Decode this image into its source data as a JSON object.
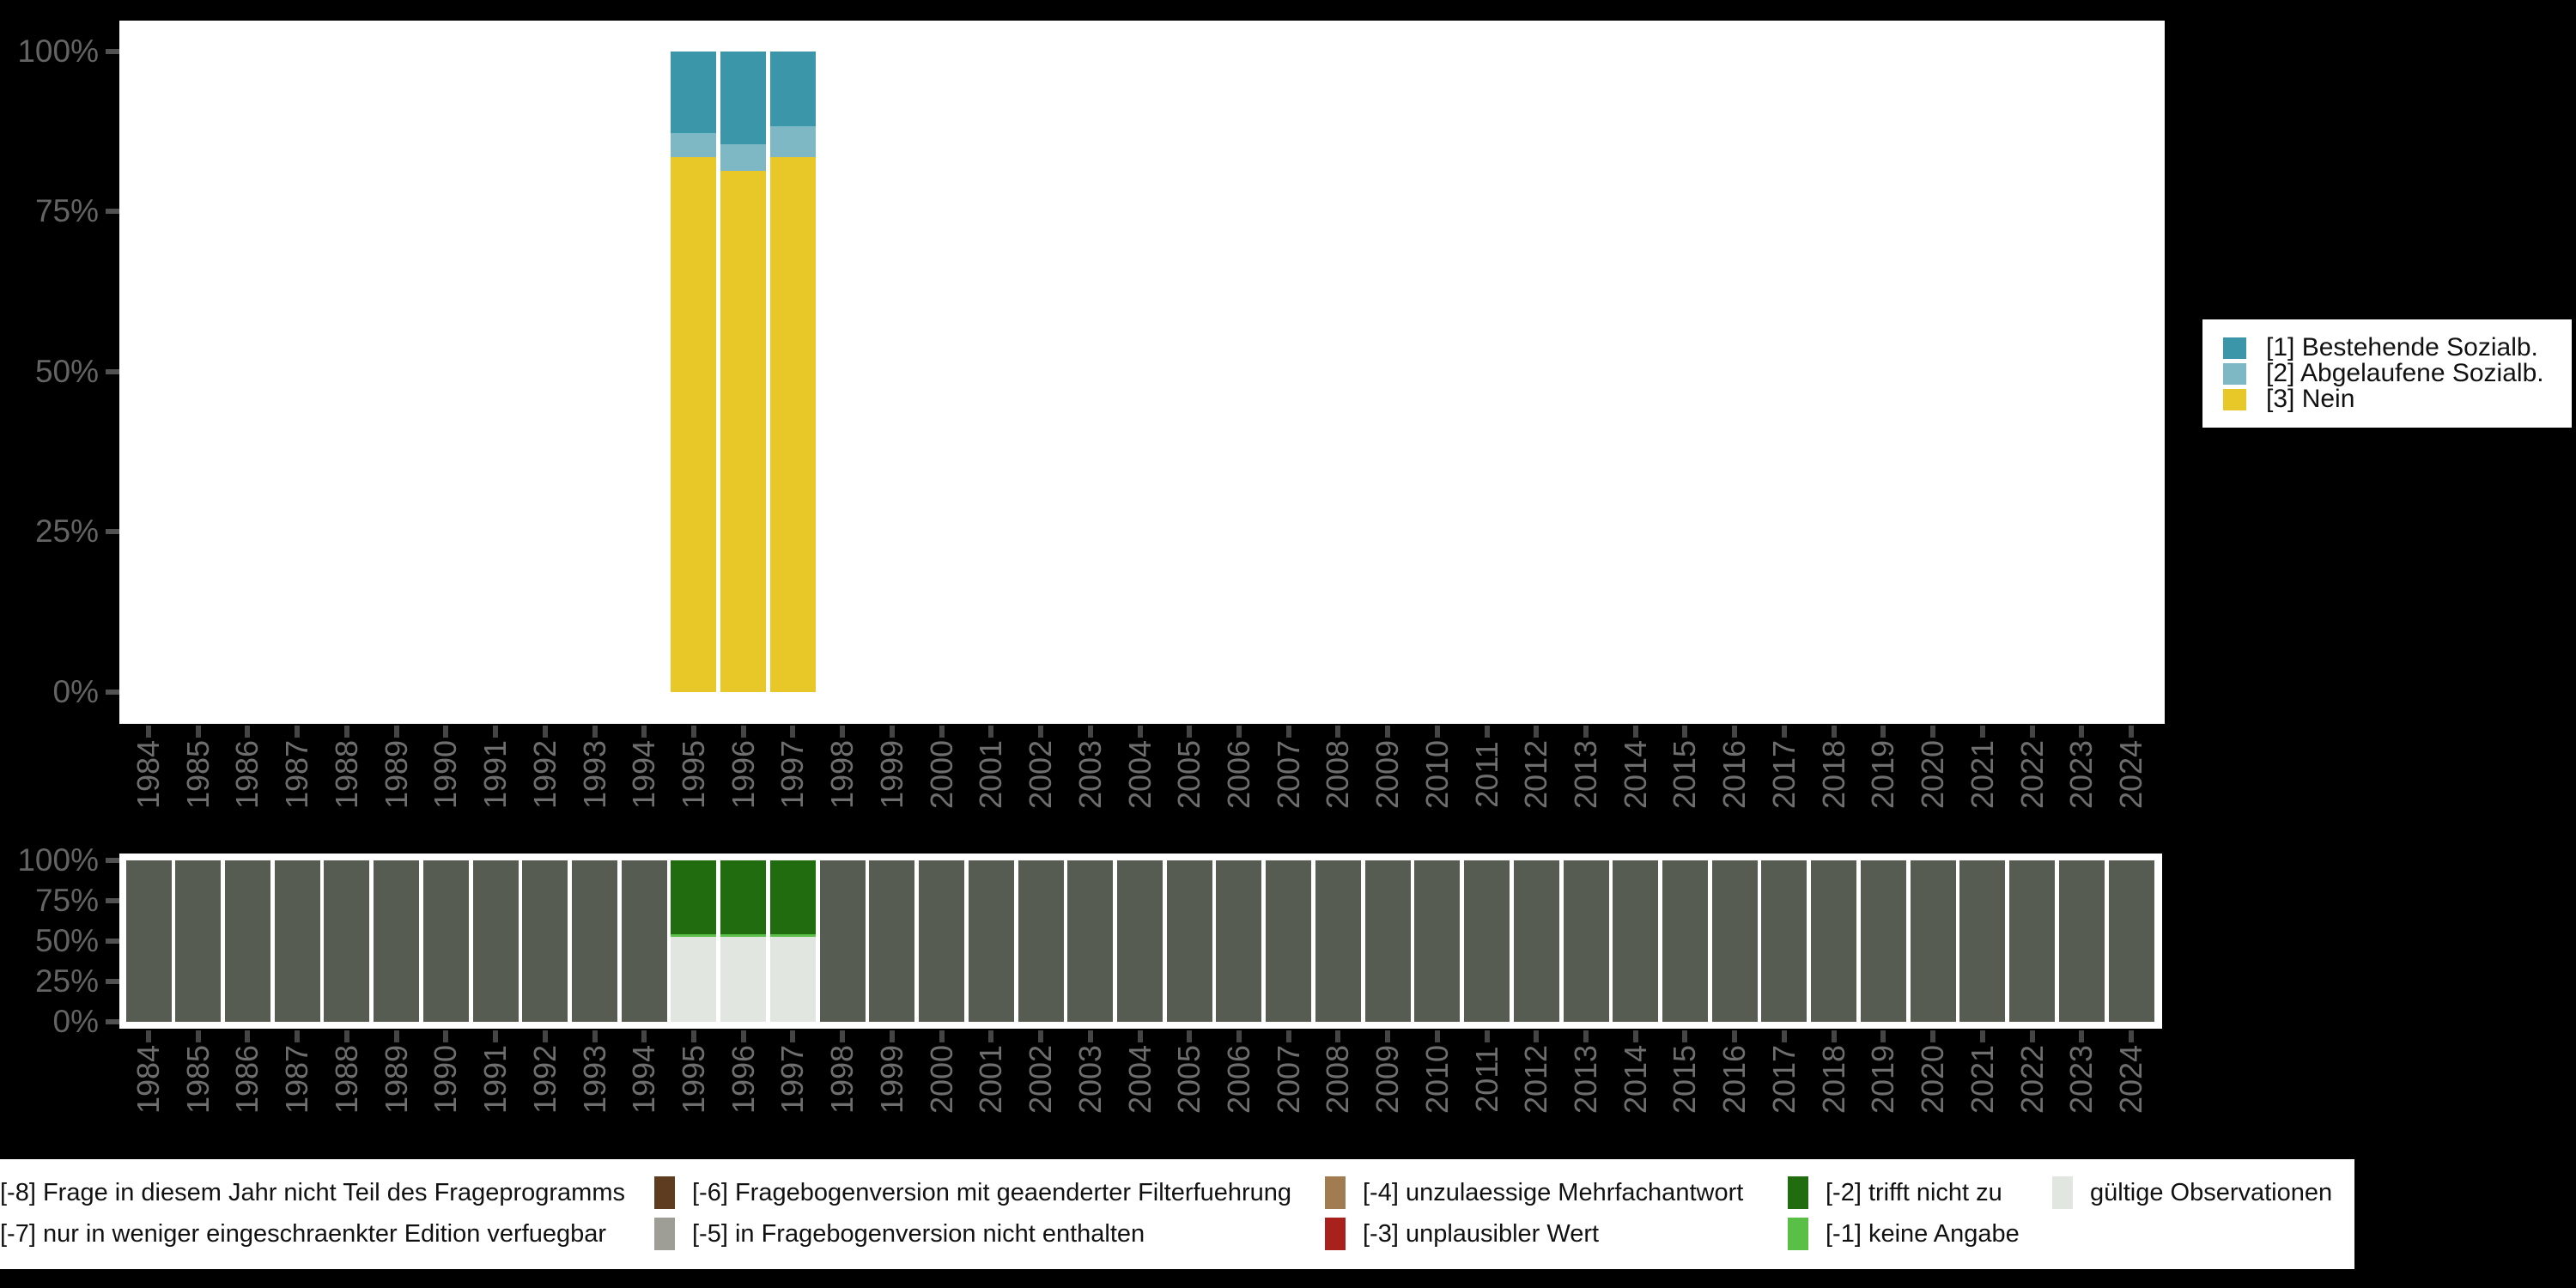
{
  "figure": {
    "background_color": "#000000",
    "panel_color": "#ffffff",
    "axis_text_color": "#6e6e6e"
  },
  "years": [
    "1984",
    "1985",
    "1986",
    "1987",
    "1988",
    "1989",
    "1990",
    "1991",
    "1992",
    "1993",
    "1994",
    "1995",
    "1996",
    "1997",
    "1998",
    "1999",
    "2000",
    "2001",
    "2002",
    "2003",
    "2004",
    "2005",
    "2006",
    "2007",
    "2008",
    "2009",
    "2010",
    "2011",
    "2012",
    "2013",
    "2014",
    "2015",
    "2016",
    "2017",
    "2018",
    "2019",
    "2020",
    "2021",
    "2022",
    "2023",
    "2024"
  ],
  "y_tick_labels": [
    "100%",
    "75%",
    "50%",
    "25%",
    "0%"
  ],
  "chart_data": [
    {
      "id": "percent-chart",
      "type": "bar",
      "stacked": true,
      "unit": "percent",
      "title": "",
      "xlabel": "",
      "ylabel": "",
      "ylim": [
        0,
        100
      ],
      "ytick_labels": [
        "0%",
        "25%",
        "50%",
        "75%",
        "100%"
      ],
      "grid": false,
      "legend_position": "right",
      "categories": [
        "1984",
        "1985",
        "1986",
        "1987",
        "1988",
        "1989",
        "1990",
        "1991",
        "1992",
        "1993",
        "1994",
        "1995",
        "1996",
        "1997",
        "1998",
        "1999",
        "2000",
        "2001",
        "2002",
        "2003",
        "2004",
        "2005",
        "2006",
        "2007",
        "2008",
        "2009",
        "2010",
        "2011",
        "2012",
        "2013",
        "2014",
        "2015",
        "2016",
        "2017",
        "2018",
        "2019",
        "2020",
        "2021",
        "2022",
        "2023",
        "2024"
      ],
      "legend": [
        {
          "label": "[1] Bestehende Sozialb.",
          "color": "#3a96a8"
        },
        {
          "label": "[2] Abgelaufene Sozialb.",
          "color": "#7db8c4"
        },
        {
          "label": "[3] Nein",
          "color": "#e8c829"
        }
      ],
      "bars": {
        "1995": [
          12.8,
          3.8,
          83.4
        ],
        "1996": [
          14.5,
          4.2,
          81.3
        ],
        "1997": [
          11.7,
          4.8,
          83.5
        ]
      }
    },
    {
      "id": "missings-chart",
      "type": "bar",
      "stacked": true,
      "unit": "percent",
      "title": "",
      "xlabel": "",
      "ylabel": "",
      "ylim": [
        0,
        100
      ],
      "ytick_labels": [
        "0%",
        "25%",
        "50%",
        "75%",
        "100%"
      ],
      "grid": false,
      "legend_position": "bottom",
      "categories": [
        "1984",
        "1985",
        "1986",
        "1987",
        "1988",
        "1989",
        "1990",
        "1991",
        "1992",
        "1993",
        "1994",
        "1995",
        "1996",
        "1997",
        "1998",
        "1999",
        "2000",
        "2001",
        "2002",
        "2003",
        "2004",
        "2005",
        "2006",
        "2007",
        "2008",
        "2009",
        "2010",
        "2011",
        "2012",
        "2013",
        "2014",
        "2015",
        "2016",
        "2017",
        "2018",
        "2019",
        "2020",
        "2021",
        "2022",
        "2023",
        "2024"
      ],
      "colors": {
        "-8": "#575c53",
        "-7": "#9e9e96",
        "-6": "#5e3c20",
        "-5": "#9e9e96",
        "-4": "#a07c50",
        "-3": "#a8211c",
        "-2": "#226c10",
        "-1": "#5abf46",
        "valid": "#e2e6e0"
      },
      "default_bar": [
        {
          "code": "-8",
          "pct": 100
        }
      ],
      "bars": {
        "1995": [
          {
            "code": "-2",
            "pct": 45.7
          },
          {
            "code": "-1",
            "pct": 1.6
          },
          {
            "code": "valid",
            "pct": 52.7
          }
        ],
        "1996": [
          {
            "code": "-2",
            "pct": 45.7
          },
          {
            "code": "-1",
            "pct": 1.6
          },
          {
            "code": "valid",
            "pct": 52.7
          }
        ],
        "1997": [
          {
            "code": "-2",
            "pct": 45.7
          },
          {
            "code": "-1",
            "pct": 1.6
          },
          {
            "code": "valid",
            "pct": 52.7
          }
        ]
      },
      "legend_columns": [
        {
          "row1": {
            "code": "-8",
            "label": "[-8] Frage in diesem Jahr nicht Teil des Frageprogramms"
          },
          "row2": {
            "code": "-7",
            "label": "[-7] nur in weniger eingeschraenkter Edition verfuegbar"
          }
        },
        {
          "row1": {
            "code": "-6",
            "label": "[-6] Fragebogenversion mit geaenderter Filterfuehrung"
          },
          "row2": {
            "code": "-5",
            "label": "[-5] in Fragebogenversion nicht enthalten"
          }
        },
        {
          "row1": {
            "code": "-4",
            "label": "[-4] unzulaessige Mehrfachantwort"
          },
          "row2": {
            "code": "-3",
            "label": "[-3] unplausibler Wert"
          }
        },
        {
          "row1": {
            "code": "-2",
            "label": "[-2] trifft nicht zu"
          },
          "row2": {
            "code": "-1",
            "label": "[-1] keine Angabe"
          }
        },
        {
          "row1": {
            "code": "valid",
            "label": "gültige Observationen"
          },
          "row2": null
        }
      ]
    }
  ]
}
